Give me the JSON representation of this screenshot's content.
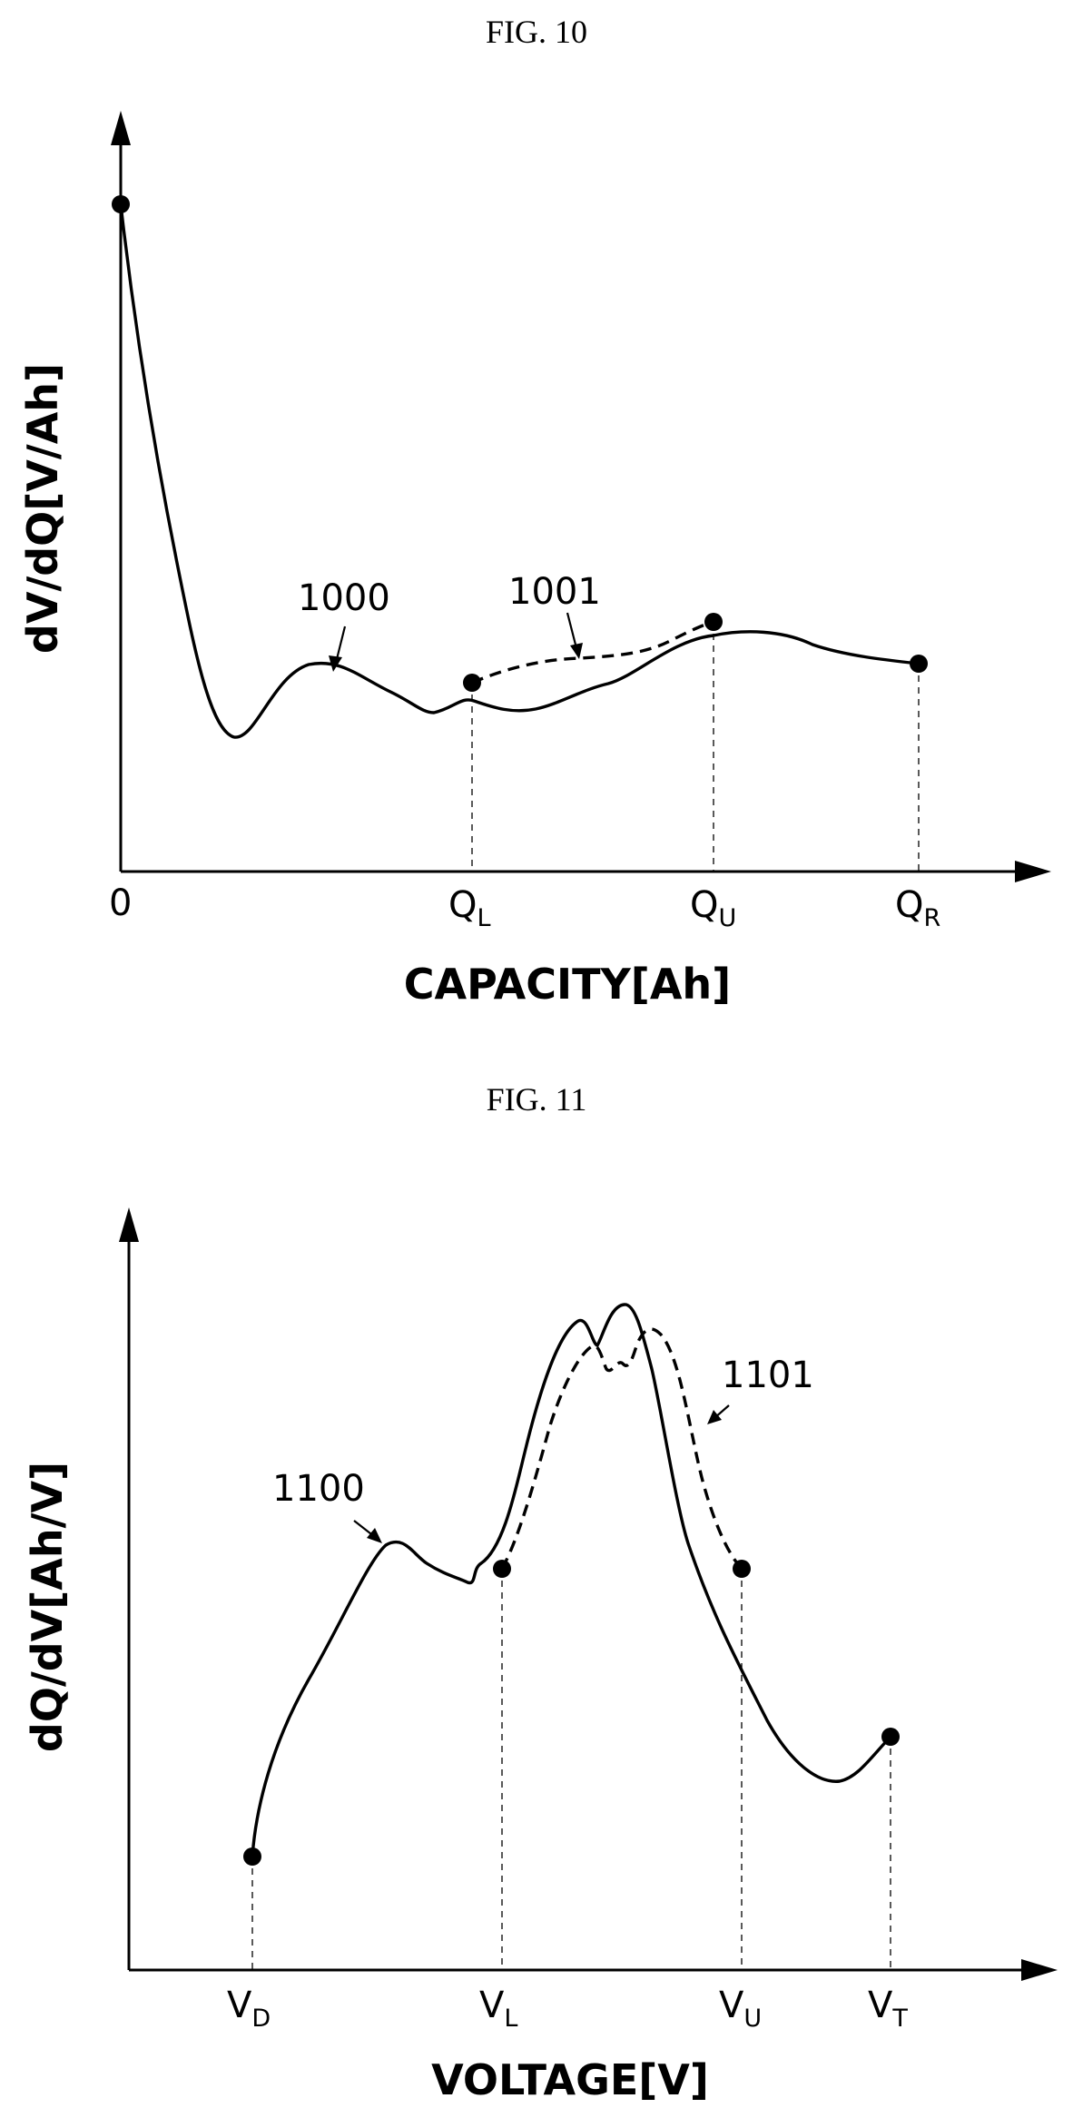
{
  "figures": {
    "fig10": {
      "title": "FIG. 10",
      "ylabel": "dV/dQ[V/Ah]",
      "xlabel": "CAPACITY[Ah]",
      "ticks": {
        "origin": "0",
        "ql": {
          "main": "Q",
          "sub": "L"
        },
        "qu": {
          "main": "Q",
          "sub": "U"
        },
        "qr": {
          "main": "Q",
          "sub": "R"
        }
      },
      "curve_solid_label": "1000",
      "curve_dashed_label": "1001"
    },
    "fig11": {
      "title": "FIG. 11",
      "ylabel": "dQ/dV[Ah/V]",
      "xlabel": "VOLTAGE[V]",
      "ticks": {
        "vd": {
          "main": "V",
          "sub": "D"
        },
        "vl": {
          "main": "V",
          "sub": "L"
        },
        "vu": {
          "main": "V",
          "sub": "U"
        },
        "vt": {
          "main": "V",
          "sub": "T"
        }
      },
      "curve_solid_label": "1100",
      "curve_dashed_label": "1101"
    }
  },
  "chart_data": [
    {
      "type": "line",
      "title": "FIG. 10",
      "xlabel": "CAPACITY[Ah]",
      "ylabel": "dV/dQ[V/Ah]",
      "x_ticks": [
        "0",
        "QL",
        "QU",
        "QR"
      ],
      "series": [
        {
          "name": "1000",
          "style": "solid",
          "from": "0",
          "to": "QR"
        },
        {
          "name": "1001",
          "style": "dashed",
          "from": "QL",
          "to": "QU"
        }
      ],
      "grid": false
    },
    {
      "type": "line",
      "title": "FIG. 11",
      "xlabel": "VOLTAGE[V]",
      "ylabel": "dQ/dV[Ah/V]",
      "x_ticks": [
        "VD",
        "VL",
        "VU",
        "VT"
      ],
      "series": [
        {
          "name": "1100",
          "style": "solid",
          "from": "VD",
          "to": "VT"
        },
        {
          "name": "1101",
          "style": "dashed",
          "from": "VL",
          "to": "VU"
        }
      ],
      "grid": false
    }
  ]
}
